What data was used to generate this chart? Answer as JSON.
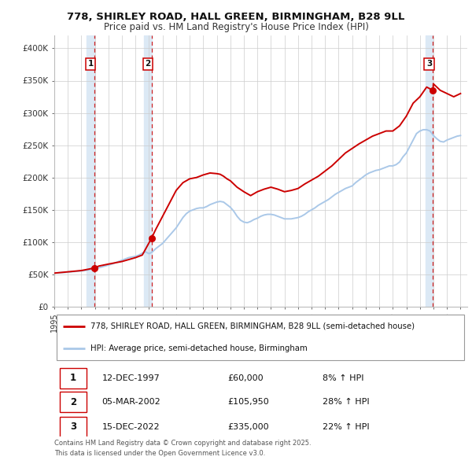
{
  "title": "778, SHIRLEY ROAD, HALL GREEN, BIRMINGHAM, B28 9LL",
  "subtitle": "Price paid vs. HM Land Registry's House Price Index (HPI)",
  "legend_line1": "778, SHIRLEY ROAD, HALL GREEN, BIRMINGHAM, B28 9LL (semi-detached house)",
  "legend_line2": "HPI: Average price, semi-detached house, Birmingham",
  "footer": "Contains HM Land Registry data © Crown copyright and database right 2025.\nThis data is licensed under the Open Government Licence v3.0.",
  "sale_color": "#cc0000",
  "hpi_color": "#aac8e8",
  "vline_color": "#cc0000",
  "highlight_bg": "#dce9f5",
  "ylim": [
    0,
    420000
  ],
  "yticks": [
    0,
    50000,
    100000,
    150000,
    200000,
    250000,
    300000,
    350000,
    400000
  ],
  "ytick_labels": [
    "£0",
    "£50K",
    "£100K",
    "£150K",
    "£200K",
    "£250K",
    "£300K",
    "£350K",
    "£400K"
  ],
  "transactions": [
    {
      "date": 1997.95,
      "price": 60000,
      "label": "1"
    },
    {
      "date": 2002.18,
      "price": 105950,
      "label": "2"
    },
    {
      "date": 2022.96,
      "price": 335000,
      "label": "3"
    }
  ],
  "table_rows": [
    {
      "num": "1",
      "date": "12-DEC-1997",
      "price": "£60,000",
      "change": "8% ↑ HPI"
    },
    {
      "num": "2",
      "date": "05-MAR-2002",
      "price": "£105,950",
      "change": "28% ↑ HPI"
    },
    {
      "num": "3",
      "date": "15-DEC-2022",
      "price": "£335,000",
      "change": "22% ↑ HPI"
    }
  ],
  "hpi_data": {
    "dates": [
      1995.0,
      1995.25,
      1995.5,
      1995.75,
      1996.0,
      1996.25,
      1996.5,
      1996.75,
      1997.0,
      1997.25,
      1997.5,
      1997.75,
      1998.0,
      1998.25,
      1998.5,
      1998.75,
      1999.0,
      1999.25,
      1999.5,
      1999.75,
      2000.0,
      2000.25,
      2000.5,
      2000.75,
      2001.0,
      2001.25,
      2001.5,
      2001.75,
      2002.0,
      2002.25,
      2002.5,
      2002.75,
      2003.0,
      2003.25,
      2003.5,
      2003.75,
      2004.0,
      2004.25,
      2004.5,
      2004.75,
      2005.0,
      2005.25,
      2005.5,
      2005.75,
      2006.0,
      2006.25,
      2006.5,
      2006.75,
      2007.0,
      2007.25,
      2007.5,
      2007.75,
      2008.0,
      2008.25,
      2008.5,
      2008.75,
      2009.0,
      2009.25,
      2009.5,
      2009.75,
      2010.0,
      2010.25,
      2010.5,
      2010.75,
      2011.0,
      2011.25,
      2011.5,
      2011.75,
      2012.0,
      2012.25,
      2012.5,
      2012.75,
      2013.0,
      2013.25,
      2013.5,
      2013.75,
      2014.0,
      2014.25,
      2014.5,
      2014.75,
      2015.0,
      2015.25,
      2015.5,
      2015.75,
      2016.0,
      2016.25,
      2016.5,
      2016.75,
      2017.0,
      2017.25,
      2017.5,
      2017.75,
      2018.0,
      2018.25,
      2018.5,
      2018.75,
      2019.0,
      2019.25,
      2019.5,
      2019.75,
      2020.0,
      2020.25,
      2020.5,
      2020.75,
      2021.0,
      2021.25,
      2021.5,
      2021.75,
      2022.0,
      2022.25,
      2022.5,
      2022.75,
      2023.0,
      2023.25,
      2023.5,
      2023.75,
      2024.0,
      2024.25,
      2024.5,
      2024.75,
      2025.0
    ],
    "values": [
      52000,
      52500,
      52800,
      53000,
      53500,
      54000,
      54500,
      55000,
      55500,
      56000,
      57000,
      58000,
      59000,
      60000,
      61500,
      63000,
      64500,
      66000,
      68000,
      70000,
      72000,
      74000,
      76000,
      77000,
      78000,
      80000,
      83000,
      85000,
      82000,
      85000,
      90000,
      94000,
      98000,
      104000,
      110000,
      116000,
      122000,
      130000,
      138000,
      144000,
      148000,
      150000,
      152000,
      153000,
      153000,
      155000,
      158000,
      160000,
      162000,
      163000,
      162000,
      158000,
      154000,
      148000,
      140000,
      134000,
      131000,
      130000,
      132000,
      135000,
      137000,
      140000,
      142000,
      143000,
      143000,
      142000,
      140000,
      138000,
      136000,
      136000,
      136000,
      137000,
      138000,
      140000,
      143000,
      147000,
      150000,
      153000,
      157000,
      160000,
      163000,
      166000,
      170000,
      174000,
      177000,
      180000,
      183000,
      185000,
      187000,
      192000,
      196000,
      200000,
      204000,
      207000,
      209000,
      211000,
      212000,
      214000,
      216000,
      218000,
      218000,
      220000,
      224000,
      232000,
      238000,
      248000,
      258000,
      268000,
      272000,
      274000,
      274000,
      272000,
      265000,
      260000,
      256000,
      255000,
      258000,
      260000,
      262000,
      264000,
      265000
    ]
  },
  "price_data": {
    "dates": [
      1995.0,
      1995.5,
      1996.0,
      1996.5,
      1997.0,
      1997.5,
      1997.95,
      1998.3,
      1999.0,
      1999.5,
      2000.0,
      2000.5,
      2001.0,
      2001.5,
      2002.18,
      2002.5,
      2003.0,
      2003.5,
      2004.0,
      2004.5,
      2005.0,
      2005.5,
      2006.0,
      2006.5,
      2007.0,
      2007.25,
      2007.5,
      2007.75,
      2008.0,
      2008.5,
      2009.0,
      2009.5,
      2010.0,
      2010.5,
      2011.0,
      2011.5,
      2012.0,
      2012.5,
      2013.0,
      2013.5,
      2014.0,
      2014.5,
      2015.0,
      2015.5,
      2016.0,
      2016.5,
      2017.0,
      2017.5,
      2018.0,
      2018.5,
      2019.0,
      2019.5,
      2020.0,
      2020.5,
      2021.0,
      2021.5,
      2022.0,
      2022.5,
      2022.96,
      2023.0,
      2023.5,
      2024.0,
      2024.5,
      2025.0
    ],
    "values": [
      52000,
      53000,
      54000,
      55000,
      56000,
      58000,
      60000,
      63000,
      66000,
      68000,
      70000,
      73000,
      76000,
      80000,
      105950,
      120000,
      140000,
      160000,
      180000,
      192000,
      198000,
      200000,
      204000,
      207000,
      206000,
      205000,
      202000,
      198000,
      195000,
      185000,
      178000,
      172000,
      178000,
      182000,
      185000,
      182000,
      178000,
      180000,
      183000,
      190000,
      196000,
      202000,
      210000,
      218000,
      228000,
      238000,
      245000,
      252000,
      258000,
      264000,
      268000,
      272000,
      272000,
      280000,
      295000,
      315000,
      325000,
      340000,
      335000,
      345000,
      335000,
      330000,
      325000,
      330000
    ]
  }
}
